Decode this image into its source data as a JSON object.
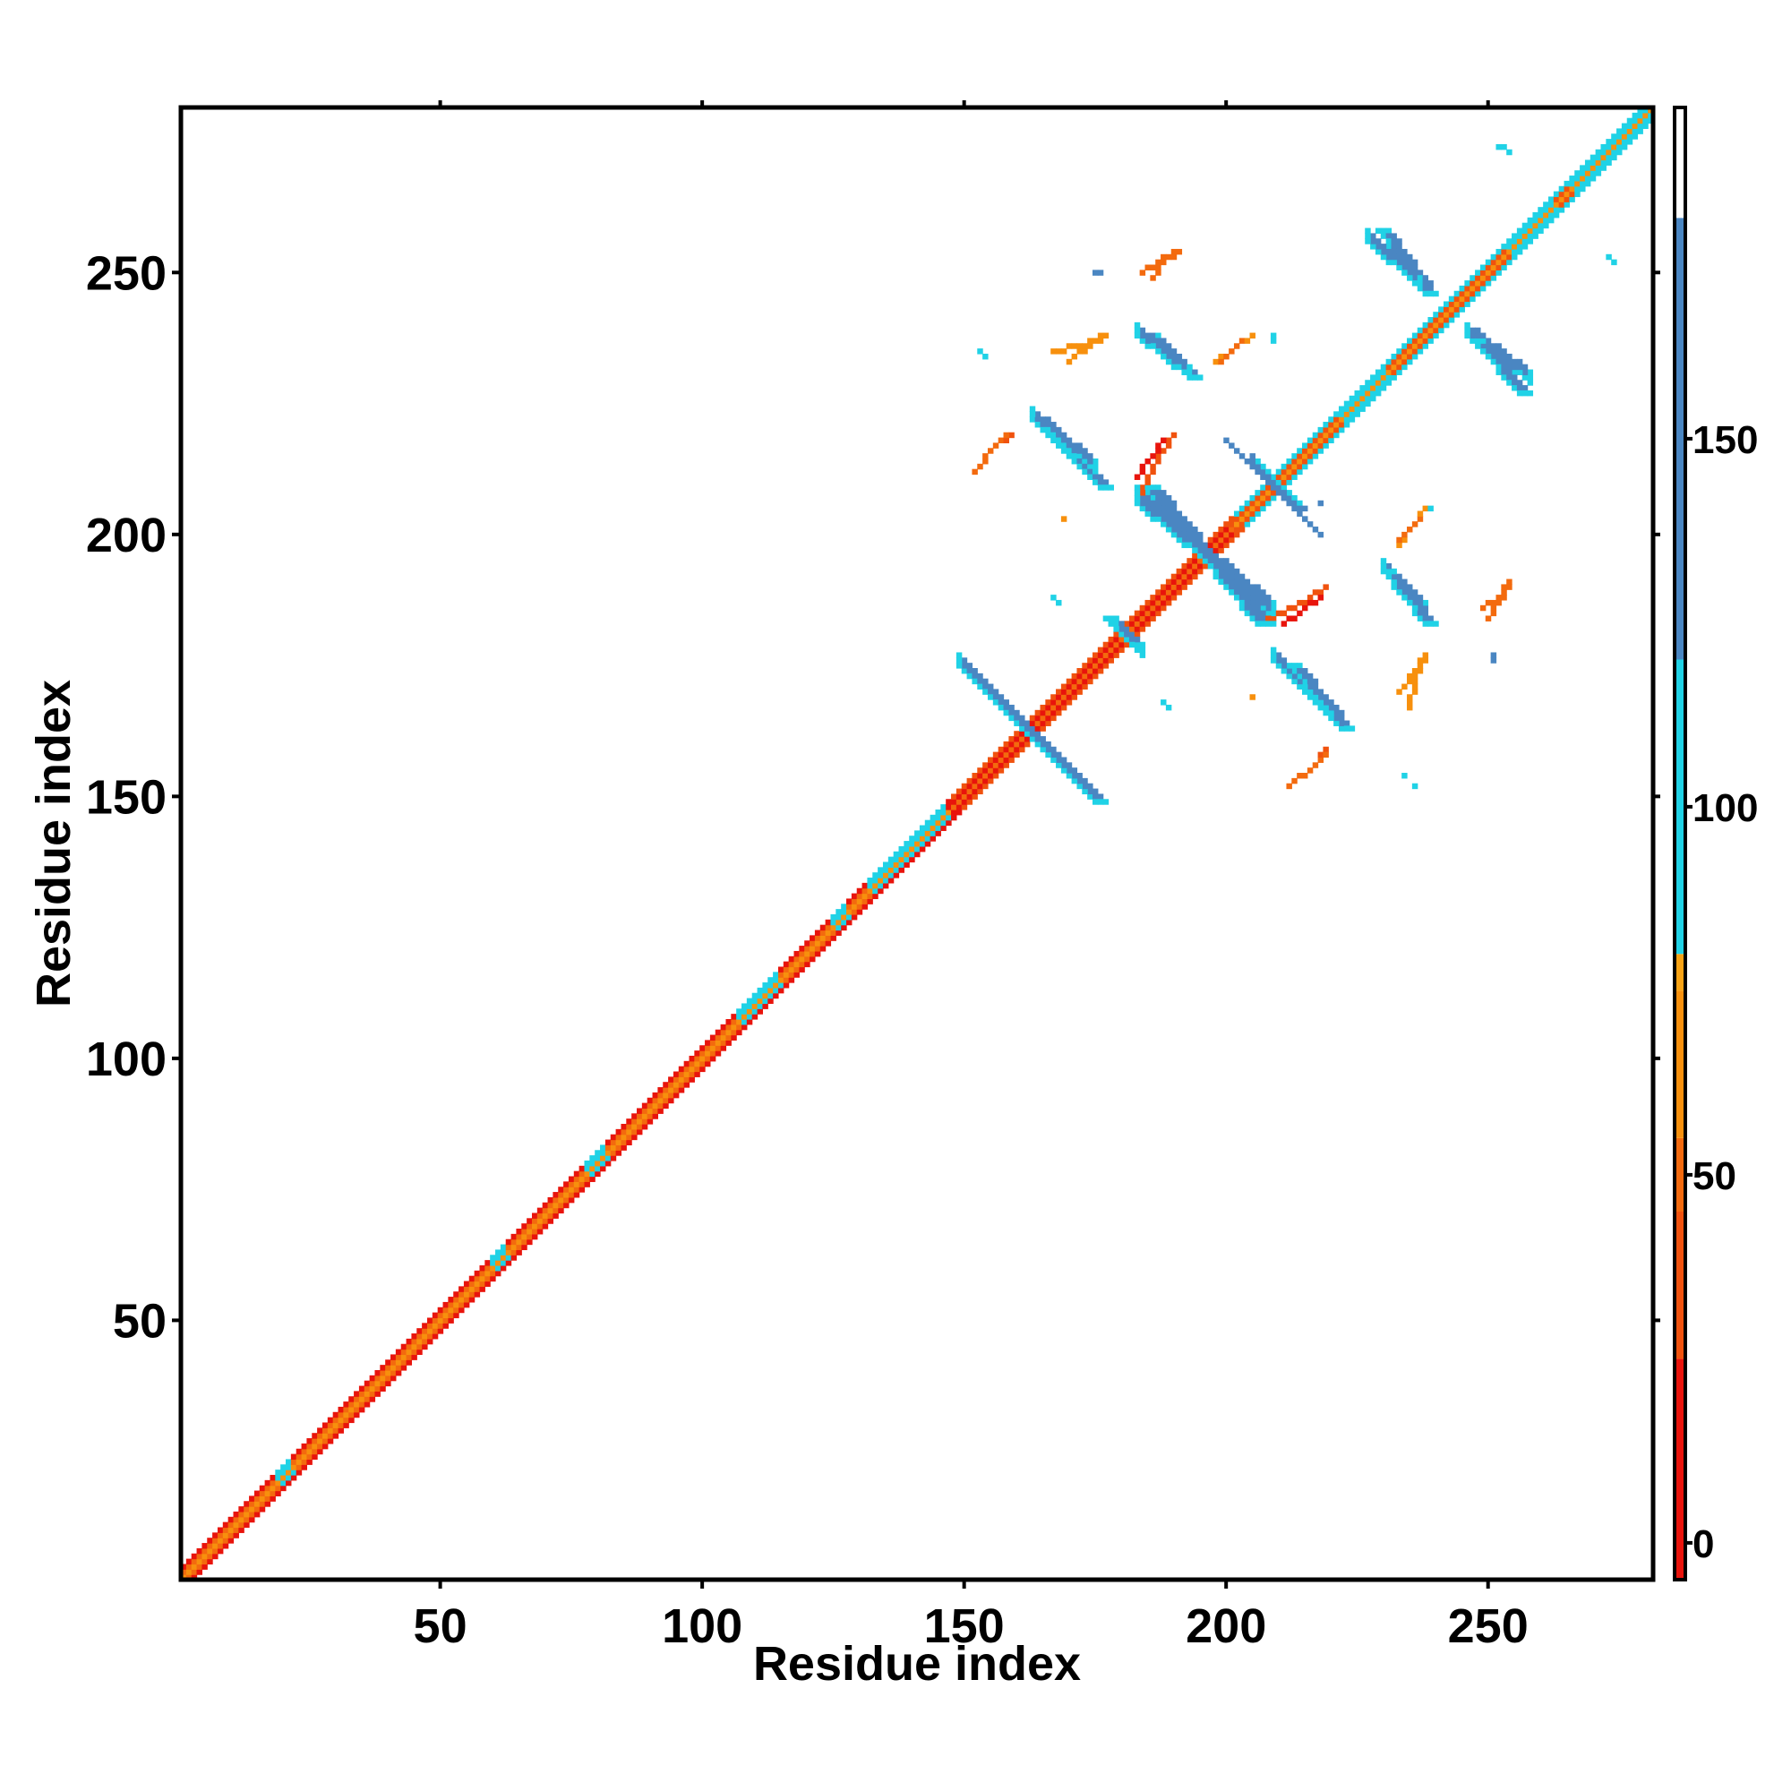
{
  "chart_data": {
    "type": "heatmap",
    "title": "",
    "xlabel": "Residue index",
    "ylabel": "Residue index",
    "xlim": [
      1,
      281
    ],
    "ylim": [
      1,
      281
    ],
    "xticks": [
      50,
      100,
      150,
      200,
      250
    ],
    "yticks": [
      50,
      100,
      150,
      200,
      250
    ],
    "colorbar": {
      "range": [
        -5,
        195
      ],
      "ticks": [
        0,
        50,
        100,
        150
      ],
      "bands": [
        {
          "from": -5,
          "to": 25,
          "color": "#e8140c"
        },
        {
          "from": 25,
          "to": 45,
          "color": "#f0520e"
        },
        {
          "from": 45,
          "to": 55,
          "color": "#f36a0e"
        },
        {
          "from": 55,
          "to": 75,
          "color": "#f7900d"
        },
        {
          "from": 75,
          "to": 80,
          "color": "#f7a214"
        },
        {
          "from": 80,
          "to": 120,
          "color": "#20d2e6"
        },
        {
          "from": 120,
          "to": 180,
          "color": "#4a86c2"
        },
        {
          "from": 180,
          "to": 195,
          "color": "#ffffff"
        }
      ]
    },
    "diagonal": {
      "from": 1,
      "to": 281,
      "bands": [
        {
          "start": 1,
          "end": 148,
          "offsets": [
            [
              -1,
              45
            ],
            [
              0,
              70
            ],
            [
              1,
              35
            ],
            [
              2,
              20
            ]
          ]
        },
        {
          "start": 148,
          "end": 202,
          "offsets": [
            [
              -1,
              20
            ],
            [
              0,
              50
            ],
            [
              1,
              15
            ],
            [
              2,
              30
            ]
          ]
        },
        {
          "start": 202,
          "end": 281,
          "offsets": [
            [
              -1,
              35
            ],
            [
              0,
              70
            ],
            [
              1,
              25
            ],
            [
              2,
              100
            ]
          ]
        }
      ],
      "cyan_patches": [
        {
          "from": 19,
          "to": 21,
          "value": 105
        },
        {
          "from": 60,
          "to": 62,
          "value": 100
        },
        {
          "from": 78,
          "to": 81,
          "value": 100
        },
        {
          "from": 107,
          "to": 114,
          "value": 100
        },
        {
          "from": 125,
          "to": 127,
          "value": 100
        },
        {
          "from": 132,
          "to": 146,
          "value": 100
        },
        {
          "from": 222,
          "to": 230,
          "value": 100
        },
        {
          "from": 254,
          "to": 262,
          "value": 100
        },
        {
          "from": 266,
          "to": 281,
          "value": 100
        }
      ]
    },
    "contacts": [
      {
        "type": "anti",
        "x": [
          150,
          175
        ],
        "y": [
          174,
          149
        ],
        "width": 3,
        "value": 150,
        "edge_value": 100
      },
      {
        "type": "anti",
        "x": [
          163,
          176
        ],
        "y": [
          222,
          209
        ],
        "width": 3,
        "value": 150,
        "edge_value": 100
      },
      {
        "type": "anti",
        "x": [
          184,
          206
        ],
        "y": [
          209,
          183
        ],
        "width": 4,
        "value": 150,
        "edge_value": 100
      },
      {
        "type": "anti",
        "x": [
          185,
          193
        ],
        "y": [
          238,
          230
        ],
        "width": 3,
        "value": 150,
        "edge_value": 100
      },
      {
        "type": "anti",
        "x": [
          212,
          222
        ],
        "y": [
          175,
          163
        ],
        "width": 3,
        "value": 150,
        "edge_value": 100
      },
      {
        "type": "anti",
        "x": [
          229,
          238
        ],
        "y": [
          258,
          246
        ],
        "width": 3,
        "value": 150,
        "edge_value": 100
      },
      {
        "type": "anti",
        "x": [
          230,
          238
        ],
        "y": [
          193,
          183
        ],
        "width": 3,
        "value": 150,
        "edge_value": 100
      },
      {
        "type": "anti",
        "x": [
          247,
          256
        ],
        "y": [
          237,
          227
        ],
        "width": 3,
        "value": 150,
        "edge_value": 100
      },
      {
        "type": "parallel",
        "x": [
          177,
          182
        ],
        "y": [
          184,
          179
        ],
        "width": 3,
        "value": 150,
        "edge_value": 100
      },
      {
        "type": "parallel",
        "x": [
          207,
          214
        ],
        "y": [
          212,
          205
        ],
        "width": 2,
        "value": 100,
        "edge_value": 150
      },
      {
        "type": "anti",
        "x": [
          200,
          213
        ],
        "y": [
          218,
          205
        ],
        "width": 1,
        "value": 150,
        "edge_value": 150
      },
      {
        "type": "curve",
        "points": [
          [
            152,
            212
          ],
          [
            155,
            216
          ],
          [
            159,
            219
          ]
        ],
        "value": 25
      },
      {
        "type": "curve",
        "points": [
          [
            170,
            233
          ],
          [
            174,
            236
          ],
          [
            177,
            238
          ]
        ],
        "value": 60
      },
      {
        "type": "curve",
        "points": [
          [
            184,
            208
          ],
          [
            186,
            213
          ],
          [
            190,
            219
          ]
        ],
        "value": 25
      },
      {
        "type": "curve",
        "points": [
          [
            186,
            249
          ],
          [
            188,
            252
          ],
          [
            191,
            254
          ]
        ],
        "value": 45
      },
      {
        "type": "curve",
        "points": [
          [
            211,
            183
          ],
          [
            214,
            185
          ],
          [
            218,
            188
          ]
        ],
        "value": 20
      },
      {
        "type": "curve",
        "points": [
          [
            212,
            152
          ],
          [
            216,
            155
          ],
          [
            219,
            158
          ]
        ],
        "value": 45
      },
      {
        "type": "curve",
        "points": [
          [
            233,
            198
          ],
          [
            235,
            201
          ],
          [
            238,
            205
          ]
        ],
        "value": 60
      },
      {
        "type": "curve",
        "points": [
          [
            235,
            167
          ],
          [
            236,
            172
          ],
          [
            238,
            177
          ]
        ],
        "value": 65
      },
      {
        "type": "curve",
        "points": [
          [
            250,
            184
          ],
          [
            252,
            187
          ],
          [
            254,
            190
          ]
        ],
        "value": 50
      },
      {
        "type": "curve",
        "points": [
          [
            199,
            233
          ],
          [
            201,
            235
          ],
          [
            203,
            237
          ]
        ],
        "value": 50
      },
      {
        "type": "dot",
        "x": 218,
        "y": 206,
        "value": 150
      },
      {
        "type": "dot",
        "x": 252,
        "y": 274,
        "value": 100
      },
      {
        "type": "dot",
        "x": 253,
        "y": 274,
        "value": 100
      },
      {
        "type": "dot",
        "x": 254,
        "y": 273,
        "value": 100
      },
      {
        "type": "dot",
        "x": 273,
        "y": 253,
        "value": 100
      },
      {
        "type": "dot",
        "x": 274,
        "y": 252,
        "value": 100
      },
      {
        "type": "dot",
        "x": 175,
        "y": 250,
        "value": 150
      },
      {
        "type": "dot",
        "x": 176,
        "y": 250,
        "value": 150
      },
      {
        "type": "dot",
        "x": 209,
        "y": 238,
        "value": 100
      },
      {
        "type": "dot",
        "x": 209,
        "y": 237,
        "value": 100
      },
      {
        "type": "dot",
        "x": 153,
        "y": 235,
        "value": 100
      },
      {
        "type": "dot",
        "x": 154,
        "y": 234,
        "value": 100
      },
      {
        "type": "dot",
        "x": 167,
        "y": 188,
        "value": 100
      },
      {
        "type": "dot",
        "x": 168,
        "y": 187,
        "value": 100
      },
      {
        "type": "dot",
        "x": 188,
        "y": 168,
        "value": 100
      },
      {
        "type": "dot",
        "x": 189,
        "y": 167,
        "value": 100
      },
      {
        "type": "dot",
        "x": 205,
        "y": 169,
        "value": 60
      },
      {
        "type": "dot",
        "x": 251,
        "y": 176,
        "value": 150
      },
      {
        "type": "dot",
        "x": 251,
        "y": 177,
        "value": 150
      },
      {
        "type": "dot",
        "x": 169,
        "y": 203,
        "value": 60
      },
      {
        "type": "dot",
        "x": 234,
        "y": 154,
        "value": 100
      },
      {
        "type": "dot",
        "x": 236,
        "y": 152,
        "value": 100
      },
      {
        "type": "dot",
        "x": 239,
        "y": 205,
        "value": 100
      }
    ]
  }
}
